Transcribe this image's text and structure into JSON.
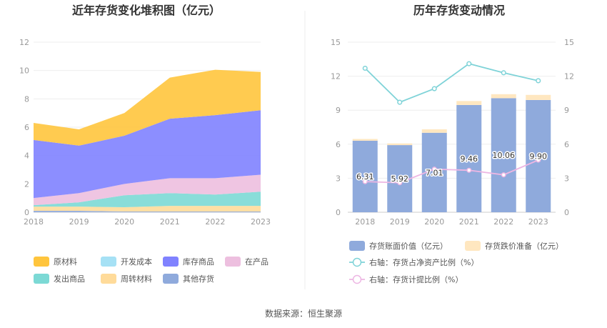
{
  "colors": {
    "raw_materials": "#FFC53D",
    "development_cost": "#A6E1F5",
    "finished_goods": "#8082FF",
    "wip": "#EDBFDF",
    "shipped_goods": "#7CD9D5",
    "turnover_materials": "#FFDB9A",
    "other_inventory": "#8FAADC",
    "book_value": "#8FAADC",
    "impairment": "#FFE7C0",
    "ratio_assets": "#7FD3D8",
    "ratio_provision": "#EDB6E3"
  },
  "footer": {
    "source": "数据来源：恒生聚源"
  },
  "chart_data": [
    {
      "type": "area",
      "stacked": true,
      "title": "近年存货变化堆积图（亿元）",
      "x": [
        "2018",
        "2019",
        "2020",
        "2021",
        "2022",
        "2023"
      ],
      "ylim": [
        0,
        12
      ],
      "yticks": [
        "0",
        "2",
        "4",
        "6",
        "8",
        "10",
        "12"
      ],
      "grid": true,
      "legend_position": "bottom",
      "series": [
        {
          "key": "other_inventory",
          "name": "其他存货",
          "values": [
            0.1,
            0.1,
            0.05,
            0.05,
            0.05,
            0.05
          ]
        },
        {
          "key": "turnover_materials",
          "name": "周转材料",
          "values": [
            0.3,
            0.3,
            0.3,
            0.4,
            0.4,
            0.4
          ]
        },
        {
          "key": "shipped_goods",
          "name": "发出商品",
          "values": [
            0.1,
            0.3,
            0.85,
            0.9,
            0.8,
            1.0
          ]
        },
        {
          "key": "wip",
          "name": "在产品",
          "values": [
            0.5,
            0.65,
            0.8,
            1.05,
            1.15,
            1.2
          ]
        },
        {
          "key": "finished_goods",
          "name": "库存商品",
          "values": [
            4.1,
            3.35,
            3.4,
            4.2,
            4.45,
            4.55
          ]
        },
        {
          "key": "development_cost",
          "name": "开发成本",
          "values": [
            0,
            0,
            0,
            0,
            0,
            0
          ]
        },
        {
          "key": "raw_materials",
          "name": "原材料",
          "values": [
            1.2,
            1.15,
            1.6,
            2.9,
            3.2,
            2.7
          ]
        }
      ],
      "legend_order": [
        "raw_materials",
        "development_cost",
        "finished_goods",
        "wip",
        "shipped_goods",
        "turnover_materials",
        "other_inventory"
      ]
    },
    {
      "type": "bar",
      "stacked": true,
      "title": "历年存货变动情况",
      "x": [
        "2018",
        "2019",
        "2020",
        "2021",
        "2022",
        "2023"
      ],
      "ylim": [
        0,
        15
      ],
      "yticks": [
        "0",
        "3",
        "6",
        "9",
        "12",
        "15"
      ],
      "y2lim": [
        0,
        15
      ],
      "y2ticks": [
        "0",
        "3",
        "6",
        "9",
        "12",
        "15"
      ],
      "grid": true,
      "legend_position": "bottom",
      "series": [
        {
          "key": "book_value",
          "name": "存货账面价值（亿元）",
          "values": [
            6.31,
            5.92,
            7.01,
            9.46,
            10.06,
            9.9
          ],
          "labels": [
            "6.31",
            "5.92",
            "7.01",
            "9.46",
            "10.06",
            "9.90"
          ]
        },
        {
          "key": "impairment",
          "name": "存货跌价准备（亿元）",
          "values": [
            0.15,
            0.15,
            0.3,
            0.35,
            0.35,
            0.45
          ]
        }
      ],
      "lines": [
        {
          "key": "ratio_assets",
          "name": "右轴：存货占净资产比例（%）",
          "axis": "right",
          "values": [
            12.7,
            9.7,
            10.9,
            13.1,
            12.3,
            11.6
          ]
        },
        {
          "key": "ratio_provision",
          "name": "右轴：存货计提比例（%）",
          "axis": "right",
          "values": [
            2.7,
            2.6,
            3.8,
            3.7,
            3.3,
            4.6
          ]
        }
      ]
    }
  ]
}
